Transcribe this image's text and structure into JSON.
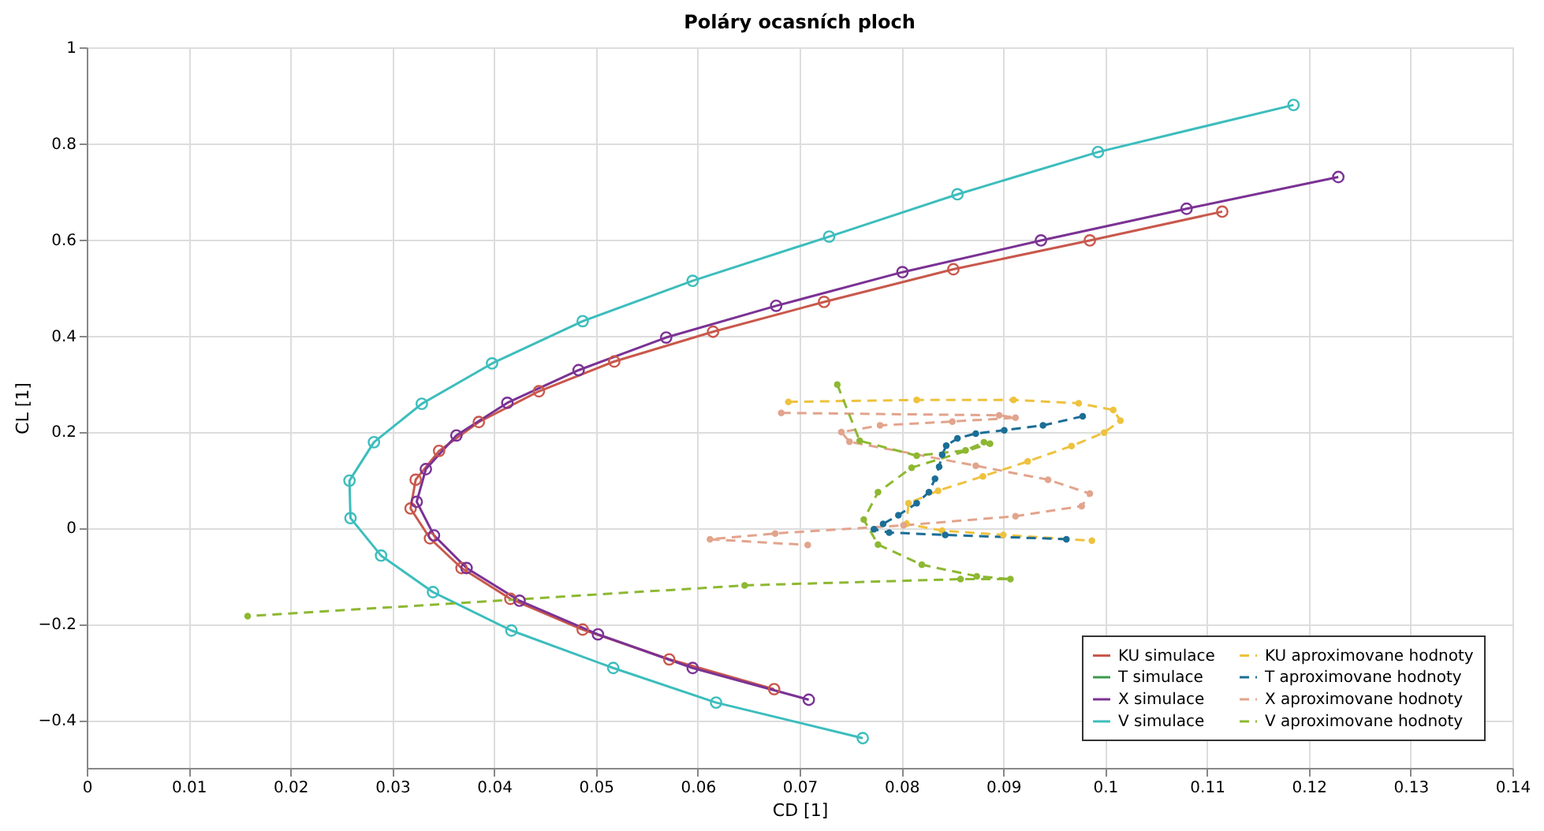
{
  "chart_data": {
    "type": "line",
    "title": "Poláry ocasních ploch",
    "xlabel": "CD [1]",
    "ylabel": "CL [1]",
    "xlim": [
      0,
      0.14
    ],
    "xticks": [
      0,
      0.01,
      0.02,
      0.03,
      0.04,
      0.05,
      0.06,
      0.07,
      0.08,
      0.09,
      0.1,
      0.11,
      0.12,
      0.13,
      0.14
    ],
    "ylim": [
      -0.5,
      1
    ],
    "yticks": [
      -0.4,
      -0.2,
      0,
      0.2,
      0.4,
      0.6,
      0.8,
      1
    ],
    "grid": true,
    "legend": "bottom right",
    "series": [
      {
        "name": "KU simulace",
        "color": "#c9584c",
        "marker": "circle",
        "line_style": "solid",
        "x": [
          0.0675,
          0.0572,
          0.0487,
          0.0416,
          0.0368,
          0.0337,
          0.0318,
          0.0323,
          0.0346,
          0.0385,
          0.0444,
          0.0518,
          0.0615,
          0.0724,
          0.0851,
          0.0985,
          0.1115
        ],
        "values": [
          -0.336,
          -0.274,
          -0.212,
          -0.148,
          -0.084,
          -0.022,
          0.04,
          0.1,
          0.16,
          0.22,
          0.284,
          0.346,
          0.408,
          0.47,
          0.538,
          0.598,
          0.658
        ]
      },
      {
        "name": "T simulace",
        "color": "#3c9a4c",
        "marker": "circle",
        "line_style": "solid"
      },
      {
        "name": "X simulace",
        "color": "#7b3294",
        "marker": "circle",
        "line_style": "solid",
        "x": [
          0.0709,
          0.0595,
          0.0502,
          0.0425,
          0.0373,
          0.0341,
          0.0324,
          0.0333,
          0.0363,
          0.0413,
          0.0483,
          0.0569,
          0.0677,
          0.0801,
          0.0937,
          0.108,
          0.1229
        ],
        "values": [
          -0.358,
          -0.292,
          -0.222,
          -0.152,
          -0.084,
          -0.016,
          0.054,
          0.122,
          0.192,
          0.26,
          0.328,
          0.396,
          0.462,
          0.532,
          0.598,
          0.664,
          0.73
        ]
      },
      {
        "name": "V simulace",
        "color": "#3dbdbd",
        "marker": "circle",
        "line_style": "solid",
        "x": [
          0.0762,
          0.0618,
          0.0517,
          0.0417,
          0.034,
          0.0289,
          0.0259,
          0.0258,
          0.0282,
          0.0329,
          0.0398,
          0.0487,
          0.0595,
          0.0729,
          0.0855,
          0.0993,
          0.1185
        ],
        "values": [
          -0.438,
          -0.364,
          -0.292,
          -0.214,
          -0.134,
          -0.058,
          0.02,
          0.098,
          0.178,
          0.258,
          0.342,
          0.43,
          0.514,
          0.606,
          0.694,
          0.782,
          0.88
        ]
      },
      {
        "name": "KU aproximovane hodnoty",
        "color": "#eec23e",
        "marker": "circle",
        "line_style": "dashed",
        "x": [
          0.0689,
          0.0815,
          0.091,
          0.0974,
          0.1008,
          0.1015,
          0.0999,
          0.0967,
          0.0924,
          0.088,
          0.0836,
          0.0807,
          0.0805,
          0.084,
          0.09,
          0.0987
        ],
        "values": [
          0.262,
          0.266,
          0.266,
          0.259,
          0.245,
          0.223,
          0.198,
          0.17,
          0.138,
          0.107,
          0.077,
          0.051,
          0.008,
          -0.006,
          -0.015,
          -0.027
        ]
      },
      {
        "name": "T aproximovane hodnoty",
        "color": "#1b6e96",
        "marker": "circle",
        "line_style": "dashed",
        "x": [
          0.0978,
          0.0939,
          0.0901,
          0.0873,
          0.0855,
          0.0844,
          0.084,
          0.0837,
          0.0833,
          0.0827,
          0.0815,
          0.0797,
          0.0782,
          0.0773,
          0.0788,
          0.0843,
          0.0962
        ],
        "values": [
          0.232,
          0.213,
          0.203,
          0.196,
          0.186,
          0.171,
          0.152,
          0.127,
          0.102,
          0.074,
          0.051,
          0.026,
          0.008,
          -0.003,
          -0.01,
          -0.015,
          -0.024
        ]
      },
      {
        "name": "X aproximovane hodnoty",
        "color": "#e2a48c",
        "marker": "circle",
        "line_style": "dashed",
        "x": [
          0.0682,
          0.0896,
          0.0912,
          0.085,
          0.0779,
          0.0741,
          0.0749,
          0.0873,
          0.0944,
          0.0985,
          0.0977,
          0.0912,
          0.0802,
          0.0676,
          0.0612,
          0.0708
        ],
        "values": [
          0.239,
          0.234,
          0.229,
          0.221,
          0.213,
          0.199,
          0.179,
          0.129,
          0.1,
          0.071,
          0.045,
          0.024,
          0.005,
          -0.012,
          -0.024,
          -0.036
        ]
      },
      {
        "name": "V aproximovane hodnoty",
        "color": "#8db832",
        "marker": "circle",
        "line_style": "dashed",
        "x": [
          0.0737,
          0.0759,
          0.0815,
          0.0863,
          0.0881,
          0.0887,
          0.081,
          0.0777,
          0.0763,
          0.0777,
          0.082,
          0.0874,
          0.0907,
          0.0858,
          0.0646,
          0.0158
        ],
        "values": [
          0.298,
          0.181,
          0.15,
          0.161,
          0.178,
          0.175,
          0.125,
          0.074,
          0.017,
          -0.035,
          -0.077,
          -0.101,
          -0.107,
          -0.107,
          -0.12,
          -0.184
        ]
      }
    ]
  }
}
